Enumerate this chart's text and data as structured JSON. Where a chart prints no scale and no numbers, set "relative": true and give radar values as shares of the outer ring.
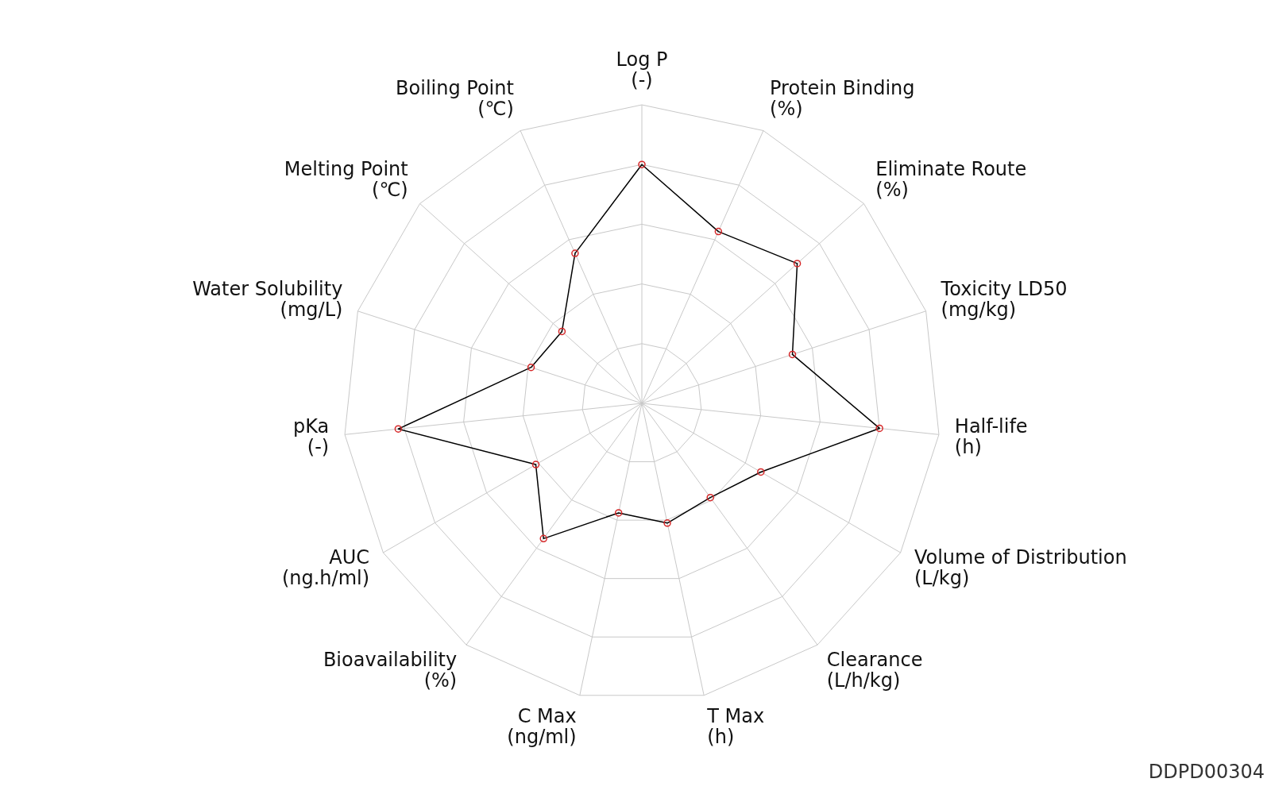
{
  "chart_data": {
    "type": "radar",
    "relative": true,
    "categories": [
      "Log P\n(-)",
      "Protein Binding\n(%)",
      "Eliminate Route\n(%)",
      "Toxicity LD50\n(mg/kg)",
      "Half-life\n(h)",
      "Volume of Distribution\n(L/kg)",
      "Clearance\n(L/h/kg)",
      "T Max\n(h)",
      "C Max\n(ng/ml)",
      "Bioavailability\n(%)",
      "AUC\n(ng.h/ml)",
      "pKa\n(-)",
      "Water Solubility\n(mg/L)",
      "Melting Point\n(℃)",
      "Boiling Point\n(℃)"
    ],
    "series": [
      {
        "color": "#000000",
        "values": [
          0.8,
          0.63,
          0.7,
          0.53,
          0.8,
          0.46,
          0.39,
          0.41,
          0.375,
          0.56,
          0.41,
          0.82,
          0.39,
          0.36,
          0.55
        ]
      }
    ],
    "marker": "circle",
    "annotations": [
      "DDPD00304"
    ]
  }
}
